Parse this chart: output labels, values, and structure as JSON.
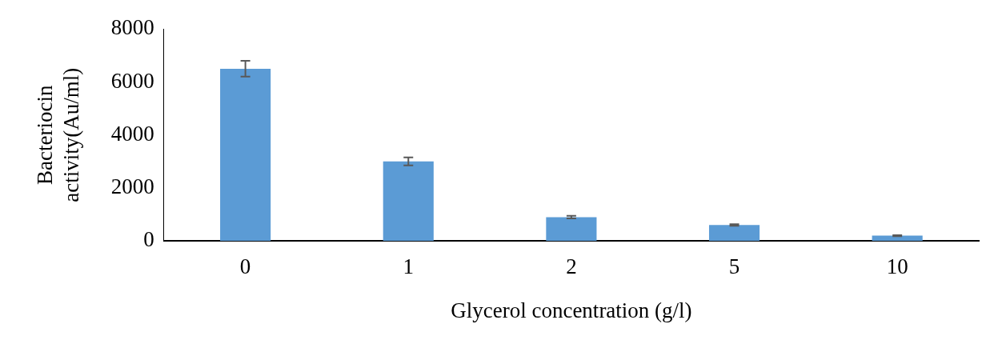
{
  "chart_data": {
    "type": "bar",
    "xlabel": "Glycerol concentration (g/l)",
    "ylabel": "Bacteriocin activity(Au/ml)",
    "categories": [
      "0",
      "1",
      "2",
      "5",
      "10"
    ],
    "values": [
      6500,
      3000,
      900,
      600,
      200
    ],
    "errors": [
      300,
      150,
      50,
      30,
      20
    ],
    "color": "#5b9bd5",
    "ylim": [
      0,
      8000
    ],
    "yticks": [
      0,
      2000,
      4000,
      6000,
      8000
    ],
    "grid": false,
    "legend": false
  }
}
